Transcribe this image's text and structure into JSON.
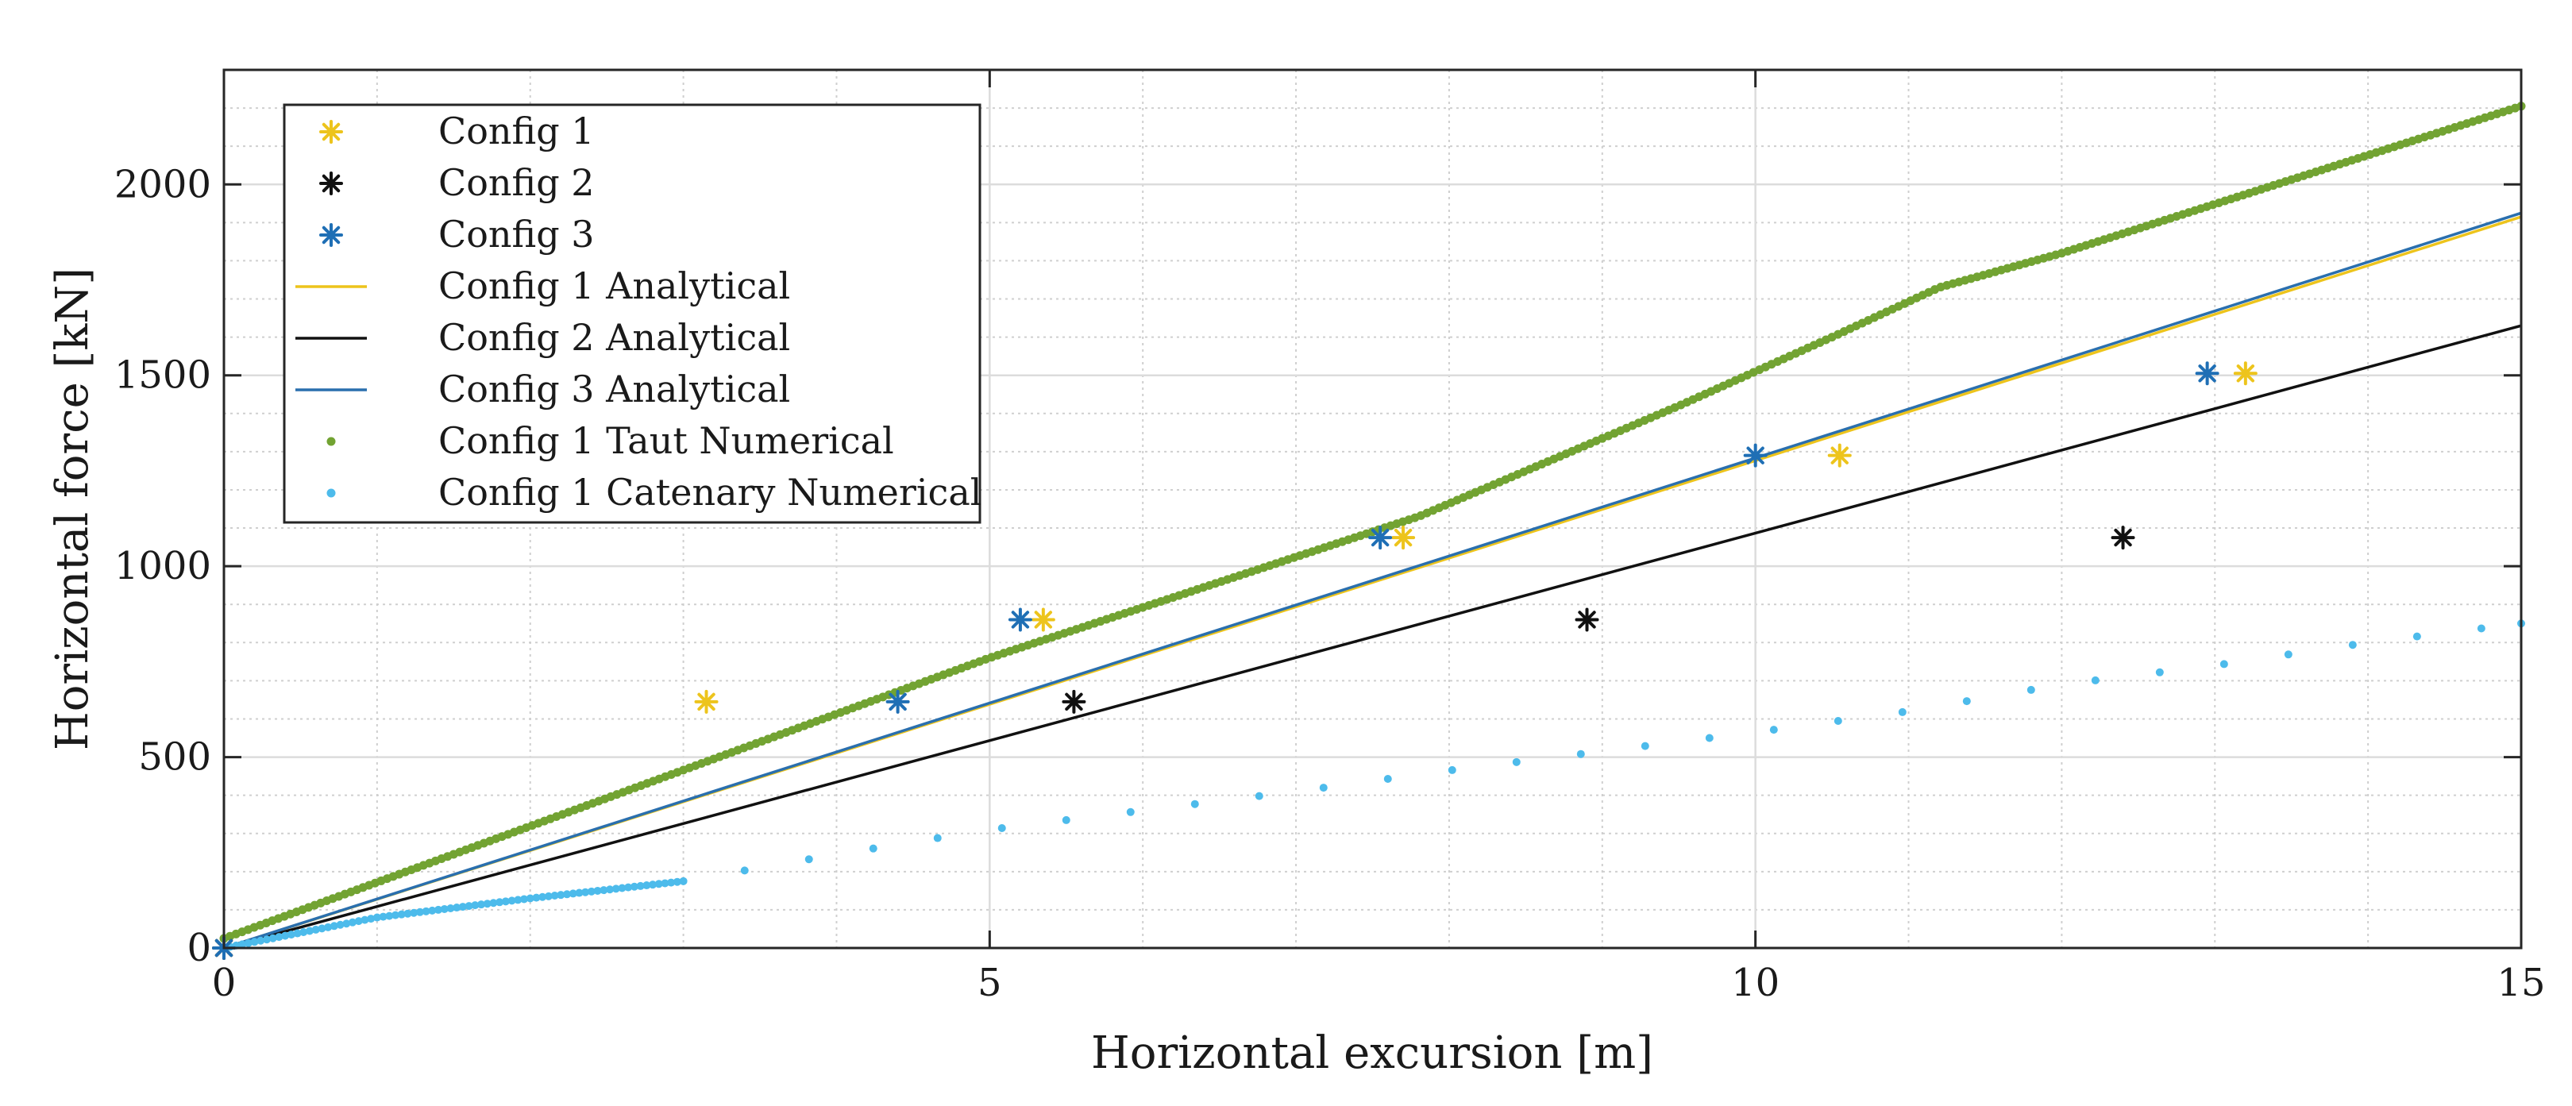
{
  "chart_data": {
    "type": "scatter",
    "title": "",
    "xlabel": "Horizontal excursion [m]",
    "ylabel": "Horizontal force [kN]",
    "xlim": [
      0,
      15
    ],
    "ylim": [
      0,
      2300
    ],
    "x_ticks": [
      0,
      5,
      10,
      15
    ],
    "x_tick_labels": [
      "0",
      "5",
      "10",
      "15"
    ],
    "y_ticks": [
      0,
      500,
      1000,
      1500,
      2000
    ],
    "y_tick_labels": [
      "0",
      "500",
      "1000",
      "1500",
      "2000"
    ],
    "grid": true,
    "minor_grid": true,
    "legend_position": "top-left",
    "series": [
      {
        "name": "Config 1",
        "kind": "star-markers",
        "color": "#EDC41C",
        "points": [
          [
            0,
            0
          ],
          [
            3.15,
            645
          ],
          [
            5.35,
            860
          ],
          [
            7.7,
            1075
          ],
          [
            10.55,
            1290
          ],
          [
            13.2,
            1505
          ]
        ]
      },
      {
        "name": "Config 2",
        "kind": "star-markers",
        "color": "#111111",
        "points": [
          [
            0,
            0
          ],
          [
            5.55,
            645
          ],
          [
            8.9,
            860
          ],
          [
            12.4,
            1075
          ]
        ]
      },
      {
        "name": "Config 3",
        "kind": "star-markers",
        "color": "#1F6FB5",
        "points": [
          [
            0,
            0
          ],
          [
            4.4,
            645
          ],
          [
            5.2,
            860
          ],
          [
            7.55,
            1075
          ],
          [
            10.0,
            1290
          ],
          [
            12.95,
            1505
          ]
        ]
      },
      {
        "name": "Config 1 Analytical",
        "kind": "line",
        "color": "#EDC41C",
        "points": [
          [
            0,
            0
          ],
          [
            15,
            1915
          ]
        ]
      },
      {
        "name": "Config 2 Analytical",
        "kind": "line",
        "color": "#111111",
        "points": [
          [
            0,
            0
          ],
          [
            15,
            1630
          ]
        ]
      },
      {
        "name": "Config 3 Analytical",
        "kind": "line",
        "color": "#2A6FAE",
        "points": [
          [
            0,
            0
          ],
          [
            15,
            1925
          ]
        ]
      },
      {
        "name": "Config 1 Taut Numerical",
        "kind": "dot-curve",
        "color": "#72A332",
        "points": [
          [
            0,
            25
          ],
          [
            5,
            760
          ],
          [
            7.8,
            1130
          ],
          [
            9.5,
            1420
          ],
          [
            10.5,
            1600
          ],
          [
            11.2,
            1730
          ],
          [
            12,
            1820
          ],
          [
            15,
            2205
          ]
        ]
      },
      {
        "name": "Config 1 Catenary Numerical",
        "kind": "dot-curve",
        "color": "#4DBBEB",
        "points": [
          [
            0,
            0
          ],
          [
            1,
            80
          ],
          [
            2,
            130
          ],
          [
            3,
            175
          ],
          [
            4,
            245
          ],
          [
            5,
            310
          ],
          [
            6,
            360
          ],
          [
            7,
            410
          ],
          [
            8,
            465
          ],
          [
            9,
            515
          ],
          [
            10,
            565
          ],
          [
            11,
            620
          ],
          [
            12,
            690
          ],
          [
            13,
            740
          ],
          [
            14,
            800
          ],
          [
            15,
            850
          ]
        ]
      }
    ]
  }
}
